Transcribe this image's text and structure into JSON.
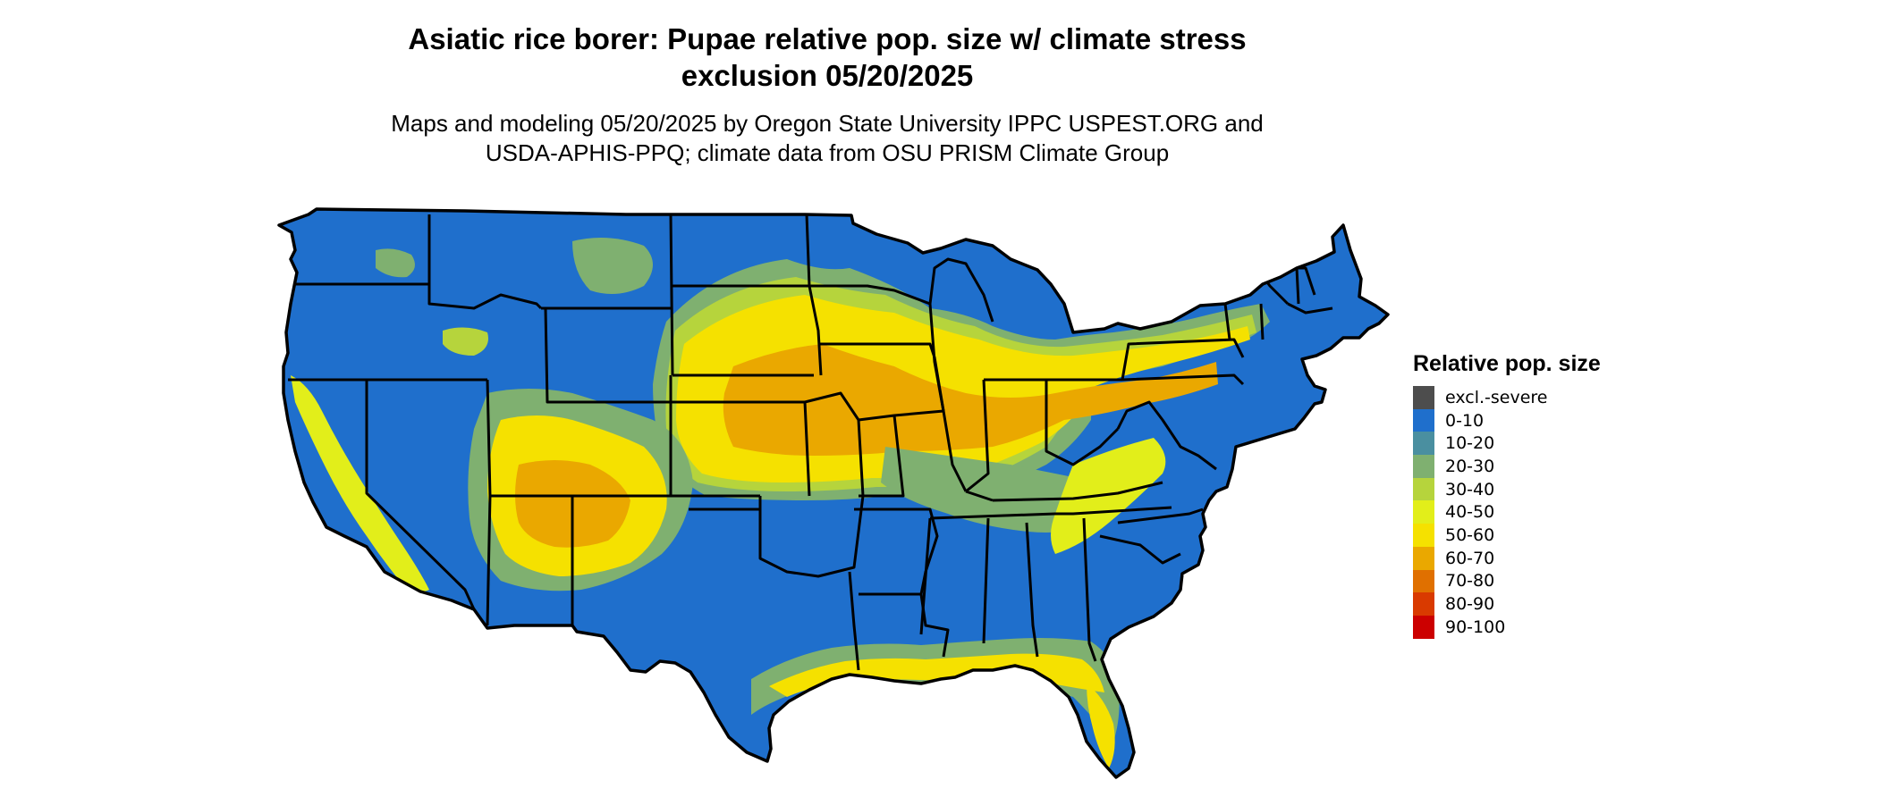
{
  "map": {
    "title_line1": "Asiatic rice borer: Pupae relative pop. size w/ climate stress",
    "title_line2": "exclusion 05/20/2025",
    "subtitle_line1": "Maps and modeling 05/20/2025 by Oregon State University IPPC USPEST.ORG and",
    "subtitle_line2": "USDA-APHIS-PPQ; climate data from OSU PRISM Climate Group"
  },
  "colors": {
    "base": "#1f6fcc",
    "teal": "#4a8fa0",
    "sage": "#7fb070",
    "lime": "#b6d43c",
    "yellow_green": "#e2ee1a",
    "yellow": "#f5e100",
    "orange": "#eaa800",
    "border": "#000000"
  },
  "legend": {
    "title": "Relative pop. size",
    "items": [
      {
        "label": "excl.-severe",
        "color": "#4d4d4d"
      },
      {
        "label": "0-10",
        "color": "#1f6fcc"
      },
      {
        "label": "10-20",
        "color": "#4a8fa0"
      },
      {
        "label": "20-30",
        "color": "#7fb070"
      },
      {
        "label": "30-40",
        "color": "#b6d43c"
      },
      {
        "label": "40-50",
        "color": "#e2ee1a"
      },
      {
        "label": "50-60",
        "color": "#f5e100"
      },
      {
        "label": "60-70",
        "color": "#eaa800"
      },
      {
        "label": "70-80",
        "color": "#e07000"
      },
      {
        "label": "80-90",
        "color": "#d93a00"
      },
      {
        "label": "90-100",
        "color": "#cc0000"
      }
    ]
  }
}
